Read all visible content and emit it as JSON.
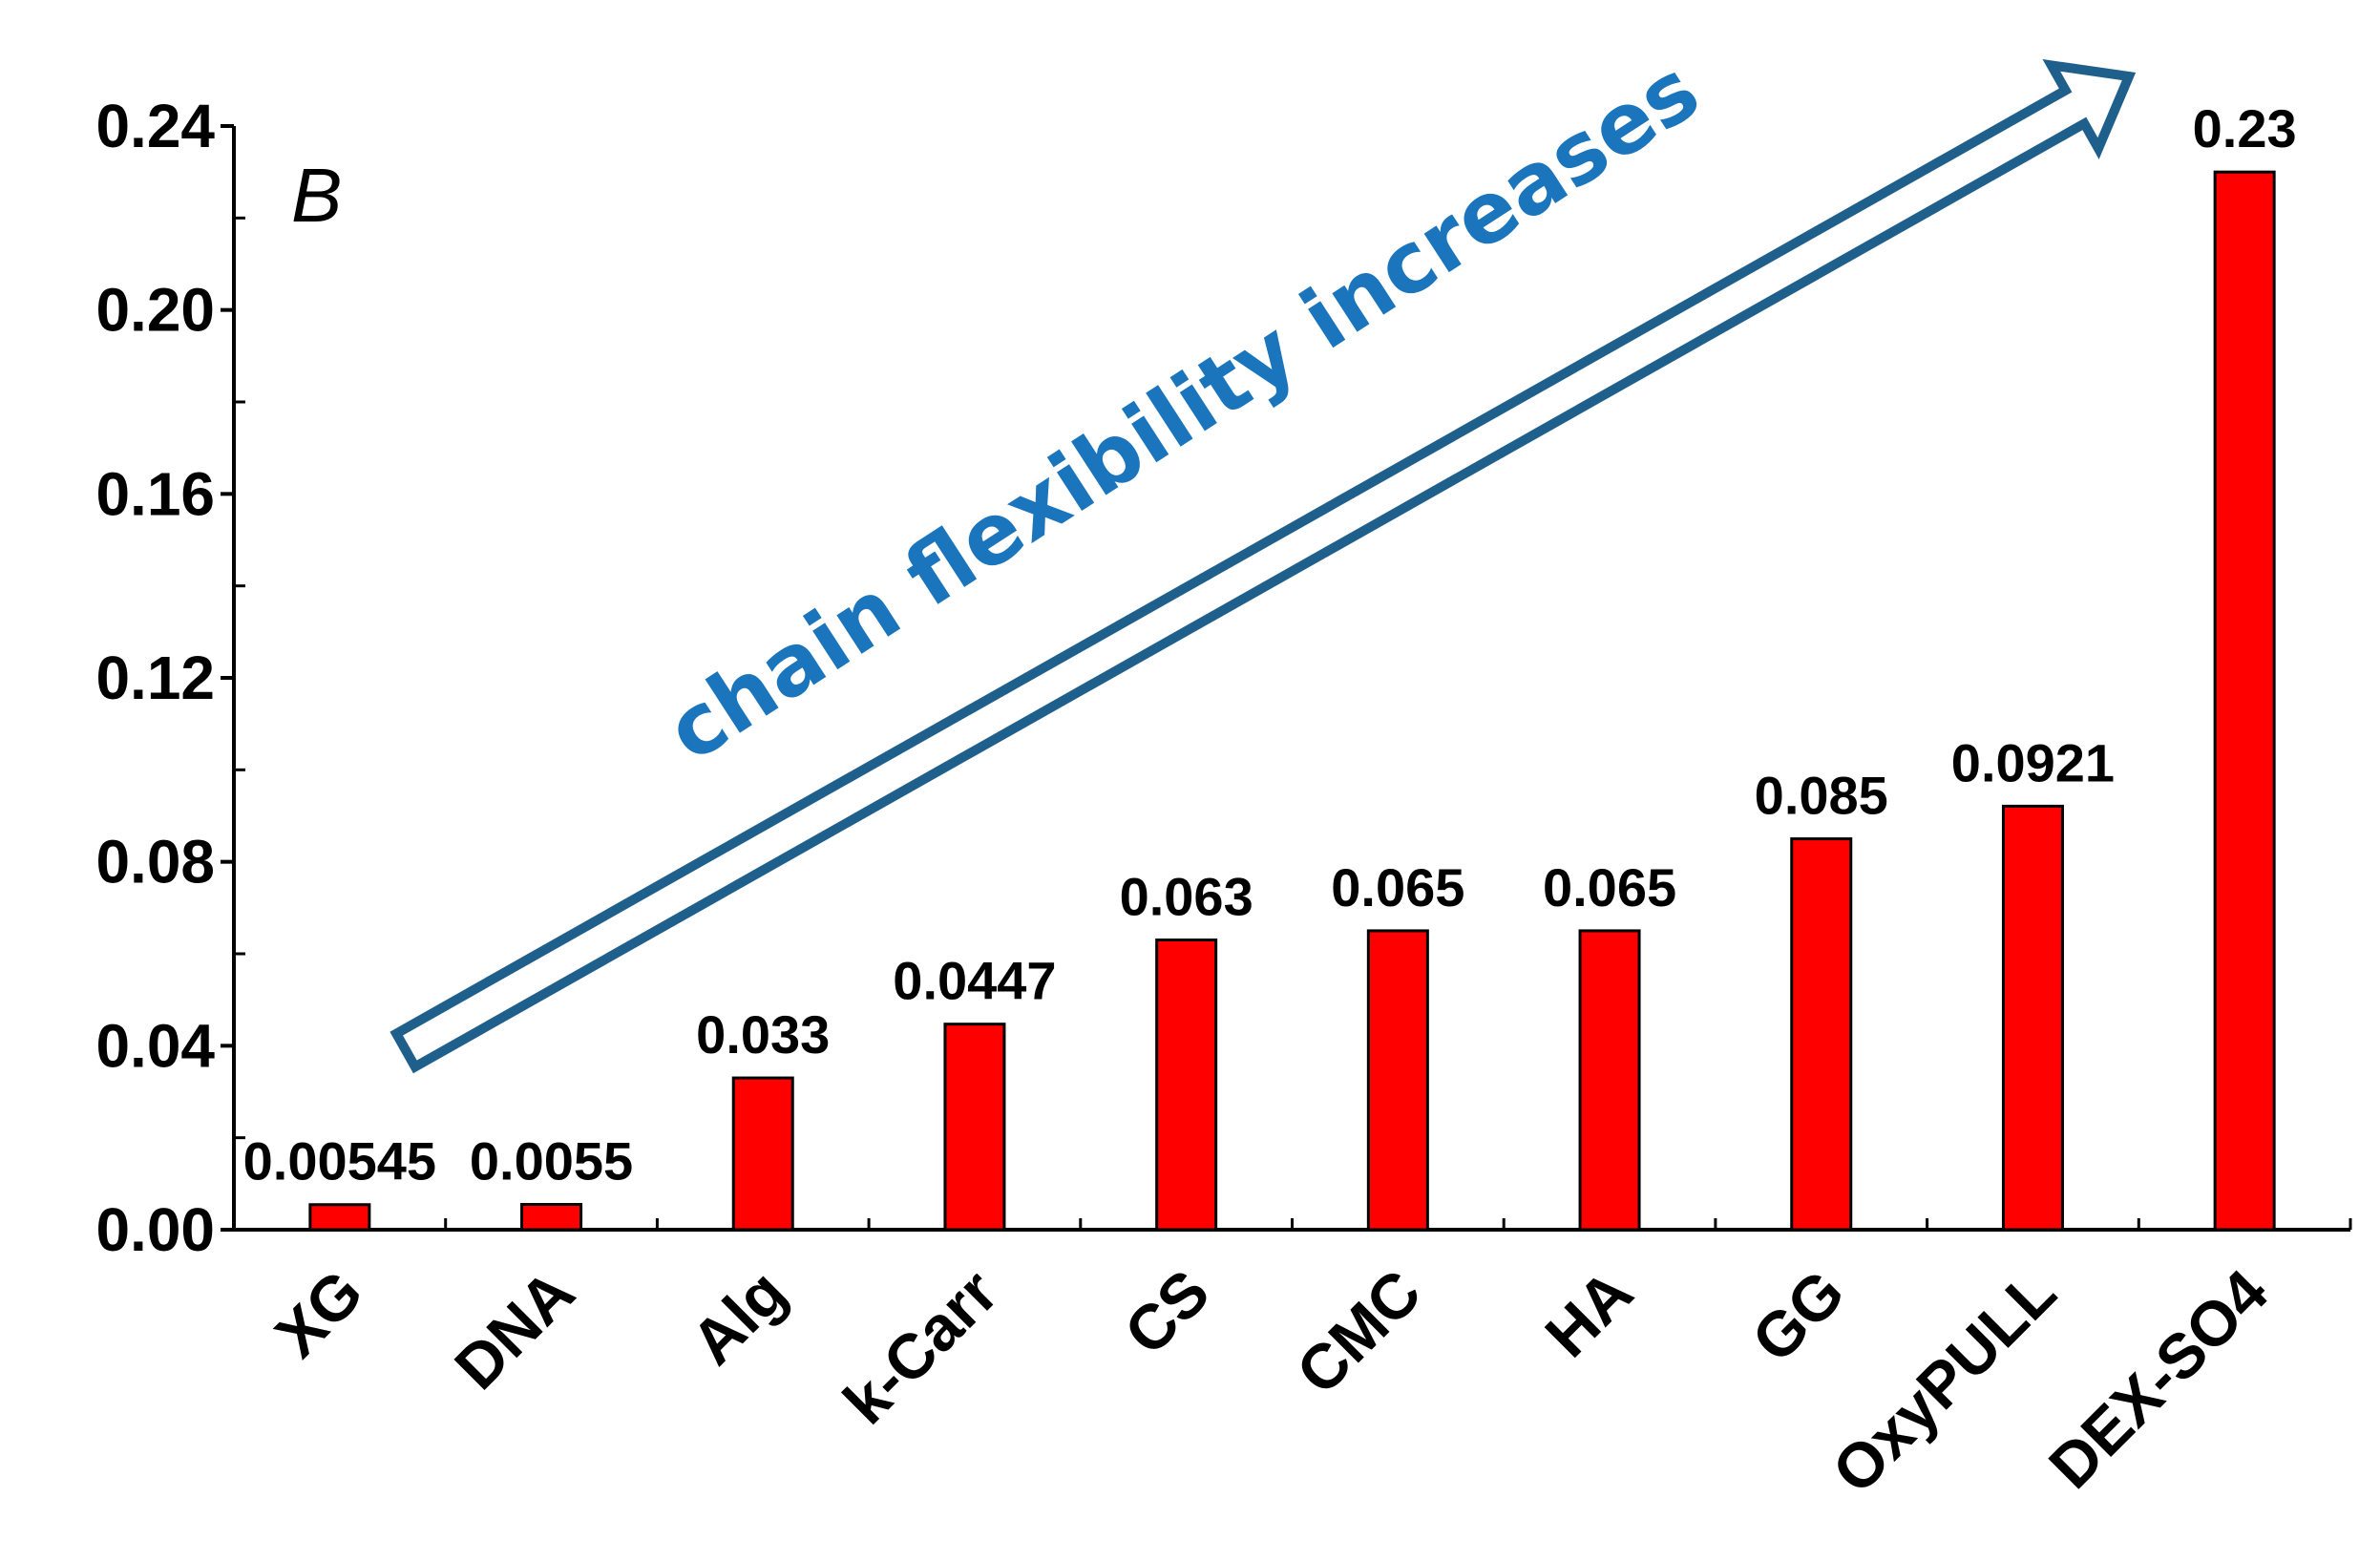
{
  "chart_data": {
    "type": "bar",
    "panel_label": "B",
    "categories": [
      "XG",
      "DNA",
      "Alg",
      "k-Carr",
      "CS",
      "CMC",
      "HA",
      "GG",
      "OxyPULL",
      "DEX-SO4"
    ],
    "values": [
      0.00545,
      0.0055,
      0.033,
      0.0447,
      0.063,
      0.065,
      0.065,
      0.085,
      0.0921,
      0.23
    ],
    "data_labels": [
      "0.00545",
      "0.0055",
      "0.033",
      "0.0447",
      "0.063",
      "0.065",
      "0.065",
      "0.085",
      "0.0921",
      "0.23"
    ],
    "yticks": [
      "0.00",
      "0.04",
      "0.08",
      "0.12",
      "0.16",
      "0.20",
      "0.24"
    ],
    "ylim": [
      0,
      0.24
    ],
    "xlabel": "",
    "ylabel": "",
    "title": "",
    "grid": false,
    "annotation": {
      "text": "chain flexibility increases",
      "shape": "arrow",
      "direction": "lower-left to upper-right",
      "color": "#1f5f8b",
      "text_color": "#1a75bc"
    },
    "colors": {
      "bar": "#ff0000",
      "bar_outline": "#000000",
      "axis": "#000000"
    }
  }
}
